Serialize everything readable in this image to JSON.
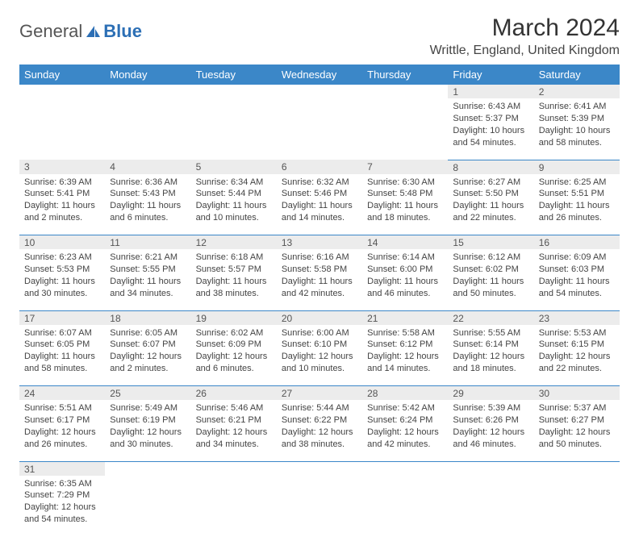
{
  "logo": {
    "text1": "General",
    "text2": "Blue"
  },
  "title": "March 2024",
  "location": "Writtle, England, United Kingdom",
  "weekdays": [
    "Sunday",
    "Monday",
    "Tuesday",
    "Wednesday",
    "Thursday",
    "Friday",
    "Saturday"
  ],
  "header_bg": "#3b87c8",
  "daynum_bg": "#ececec",
  "line_color": "#3b87c8",
  "cells": [
    [
      null,
      null,
      null,
      null,
      null,
      {
        "n": "1",
        "sr": "Sunrise: 6:43 AM",
        "ss": "Sunset: 5:37 PM",
        "d1": "Daylight: 10 hours",
        "d2": "and 54 minutes."
      },
      {
        "n": "2",
        "sr": "Sunrise: 6:41 AM",
        "ss": "Sunset: 5:39 PM",
        "d1": "Daylight: 10 hours",
        "d2": "and 58 minutes."
      }
    ],
    [
      {
        "n": "3",
        "sr": "Sunrise: 6:39 AM",
        "ss": "Sunset: 5:41 PM",
        "d1": "Daylight: 11 hours",
        "d2": "and 2 minutes."
      },
      {
        "n": "4",
        "sr": "Sunrise: 6:36 AM",
        "ss": "Sunset: 5:43 PM",
        "d1": "Daylight: 11 hours",
        "d2": "and 6 minutes."
      },
      {
        "n": "5",
        "sr": "Sunrise: 6:34 AM",
        "ss": "Sunset: 5:44 PM",
        "d1": "Daylight: 11 hours",
        "d2": "and 10 minutes."
      },
      {
        "n": "6",
        "sr": "Sunrise: 6:32 AM",
        "ss": "Sunset: 5:46 PM",
        "d1": "Daylight: 11 hours",
        "d2": "and 14 minutes."
      },
      {
        "n": "7",
        "sr": "Sunrise: 6:30 AM",
        "ss": "Sunset: 5:48 PM",
        "d1": "Daylight: 11 hours",
        "d2": "and 18 minutes."
      },
      {
        "n": "8",
        "sr": "Sunrise: 6:27 AM",
        "ss": "Sunset: 5:50 PM",
        "d1": "Daylight: 11 hours",
        "d2": "and 22 minutes."
      },
      {
        "n": "9",
        "sr": "Sunrise: 6:25 AM",
        "ss": "Sunset: 5:51 PM",
        "d1": "Daylight: 11 hours",
        "d2": "and 26 minutes."
      }
    ],
    [
      {
        "n": "10",
        "sr": "Sunrise: 6:23 AM",
        "ss": "Sunset: 5:53 PM",
        "d1": "Daylight: 11 hours",
        "d2": "and 30 minutes."
      },
      {
        "n": "11",
        "sr": "Sunrise: 6:21 AM",
        "ss": "Sunset: 5:55 PM",
        "d1": "Daylight: 11 hours",
        "d2": "and 34 minutes."
      },
      {
        "n": "12",
        "sr": "Sunrise: 6:18 AM",
        "ss": "Sunset: 5:57 PM",
        "d1": "Daylight: 11 hours",
        "d2": "and 38 minutes."
      },
      {
        "n": "13",
        "sr": "Sunrise: 6:16 AM",
        "ss": "Sunset: 5:58 PM",
        "d1": "Daylight: 11 hours",
        "d2": "and 42 minutes."
      },
      {
        "n": "14",
        "sr": "Sunrise: 6:14 AM",
        "ss": "Sunset: 6:00 PM",
        "d1": "Daylight: 11 hours",
        "d2": "and 46 minutes."
      },
      {
        "n": "15",
        "sr": "Sunrise: 6:12 AM",
        "ss": "Sunset: 6:02 PM",
        "d1": "Daylight: 11 hours",
        "d2": "and 50 minutes."
      },
      {
        "n": "16",
        "sr": "Sunrise: 6:09 AM",
        "ss": "Sunset: 6:03 PM",
        "d1": "Daylight: 11 hours",
        "d2": "and 54 minutes."
      }
    ],
    [
      {
        "n": "17",
        "sr": "Sunrise: 6:07 AM",
        "ss": "Sunset: 6:05 PM",
        "d1": "Daylight: 11 hours",
        "d2": "and 58 minutes."
      },
      {
        "n": "18",
        "sr": "Sunrise: 6:05 AM",
        "ss": "Sunset: 6:07 PM",
        "d1": "Daylight: 12 hours",
        "d2": "and 2 minutes."
      },
      {
        "n": "19",
        "sr": "Sunrise: 6:02 AM",
        "ss": "Sunset: 6:09 PM",
        "d1": "Daylight: 12 hours",
        "d2": "and 6 minutes."
      },
      {
        "n": "20",
        "sr": "Sunrise: 6:00 AM",
        "ss": "Sunset: 6:10 PM",
        "d1": "Daylight: 12 hours",
        "d2": "and 10 minutes."
      },
      {
        "n": "21",
        "sr": "Sunrise: 5:58 AM",
        "ss": "Sunset: 6:12 PM",
        "d1": "Daylight: 12 hours",
        "d2": "and 14 minutes."
      },
      {
        "n": "22",
        "sr": "Sunrise: 5:55 AM",
        "ss": "Sunset: 6:14 PM",
        "d1": "Daylight: 12 hours",
        "d2": "and 18 minutes."
      },
      {
        "n": "23",
        "sr": "Sunrise: 5:53 AM",
        "ss": "Sunset: 6:15 PM",
        "d1": "Daylight: 12 hours",
        "d2": "and 22 minutes."
      }
    ],
    [
      {
        "n": "24",
        "sr": "Sunrise: 5:51 AM",
        "ss": "Sunset: 6:17 PM",
        "d1": "Daylight: 12 hours",
        "d2": "and 26 minutes."
      },
      {
        "n": "25",
        "sr": "Sunrise: 5:49 AM",
        "ss": "Sunset: 6:19 PM",
        "d1": "Daylight: 12 hours",
        "d2": "and 30 minutes."
      },
      {
        "n": "26",
        "sr": "Sunrise: 5:46 AM",
        "ss": "Sunset: 6:21 PM",
        "d1": "Daylight: 12 hours",
        "d2": "and 34 minutes."
      },
      {
        "n": "27",
        "sr": "Sunrise: 5:44 AM",
        "ss": "Sunset: 6:22 PM",
        "d1": "Daylight: 12 hours",
        "d2": "and 38 minutes."
      },
      {
        "n": "28",
        "sr": "Sunrise: 5:42 AM",
        "ss": "Sunset: 6:24 PM",
        "d1": "Daylight: 12 hours",
        "d2": "and 42 minutes."
      },
      {
        "n": "29",
        "sr": "Sunrise: 5:39 AM",
        "ss": "Sunset: 6:26 PM",
        "d1": "Daylight: 12 hours",
        "d2": "and 46 minutes."
      },
      {
        "n": "30",
        "sr": "Sunrise: 5:37 AM",
        "ss": "Sunset: 6:27 PM",
        "d1": "Daylight: 12 hours",
        "d2": "and 50 minutes."
      }
    ],
    [
      {
        "n": "31",
        "sr": "Sunrise: 6:35 AM",
        "ss": "Sunset: 7:29 PM",
        "d1": "Daylight: 12 hours",
        "d2": "and 54 minutes."
      },
      null,
      null,
      null,
      null,
      null,
      null
    ]
  ]
}
